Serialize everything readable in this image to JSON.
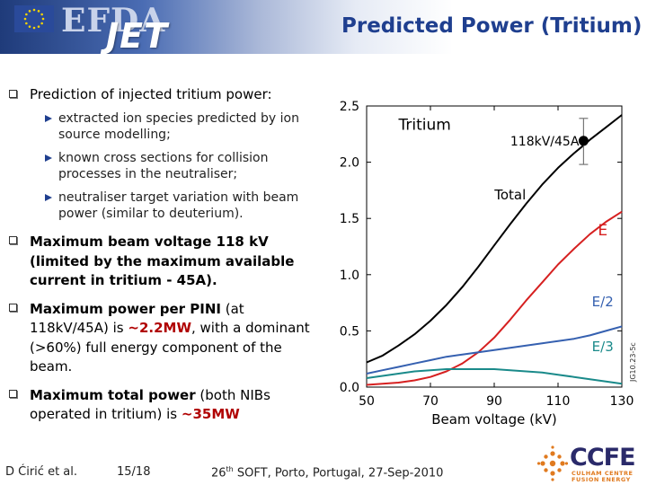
{
  "header": {
    "efda_logo": "EFDA",
    "jet_logo": "JET",
    "title": "Predicted Power (Tritium)"
  },
  "bullets": {
    "b1": "Prediction of injected tritium power:",
    "subs": [
      "extracted ion species predicted by ion source modelling;",
      "known cross sections for collision processes in the neutraliser;",
      "neutraliser target variation with beam power (similar to deuterium)."
    ],
    "b2": "Maximum beam voltage 118 kV (limited by the maximum available current in tritium - 45A).",
    "b3_bold": "Maximum power per PINI",
    "b3_mid": "(at 118kV/45A) is",
    "b3_red": "~2.2MW",
    "b3_end": ", with a dominant (>60%) full energy component of the beam.",
    "b4_bold": "Maximum total power",
    "b4_mid": "(both NIBs operated in tritium) is",
    "b4_red": "~35MW"
  },
  "chart_data": {
    "type": "line",
    "title": "Tritium",
    "xlabel": "Beam voltage (kV)",
    "ylabel": "",
    "xlim": [
      50,
      130
    ],
    "ylim": [
      0,
      2.5
    ],
    "xticks": [
      50,
      70,
      90,
      110,
      130
    ],
    "yticks": [
      "0.0",
      "0.5",
      "1.0",
      "1.5",
      "2.0",
      "2.5"
    ],
    "grid": false,
    "series": [
      {
        "name": "Total",
        "color": "#000000",
        "x": [
          50,
          55,
          60,
          65,
          70,
          75,
          80,
          85,
          90,
          95,
          100,
          105,
          110,
          115,
          118,
          120,
          125,
          130
        ],
        "y": [
          0.22,
          0.28,
          0.37,
          0.47,
          0.59,
          0.73,
          0.89,
          1.07,
          1.26,
          1.45,
          1.63,
          1.8,
          1.95,
          2.08,
          2.15,
          2.2,
          2.31,
          2.42
        ]
      },
      {
        "name": "E",
        "color": "#d62020",
        "x": [
          50,
          55,
          60,
          65,
          70,
          75,
          80,
          85,
          90,
          95,
          100,
          105,
          110,
          115,
          120,
          125,
          130
        ],
        "y": [
          0.02,
          0.03,
          0.04,
          0.06,
          0.09,
          0.14,
          0.21,
          0.31,
          0.44,
          0.6,
          0.77,
          0.93,
          1.09,
          1.23,
          1.36,
          1.47,
          1.56
        ]
      },
      {
        "name": "E/2",
        "color": "#3560b0",
        "x": [
          50,
          55,
          60,
          65,
          70,
          75,
          80,
          85,
          90,
          95,
          100,
          105,
          110,
          115,
          120,
          125,
          130
        ],
        "y": [
          0.12,
          0.15,
          0.18,
          0.21,
          0.24,
          0.27,
          0.29,
          0.31,
          0.33,
          0.35,
          0.37,
          0.39,
          0.41,
          0.43,
          0.46,
          0.5,
          0.54
        ]
      },
      {
        "name": "E/3",
        "color": "#1a8a8a",
        "x": [
          50,
          55,
          60,
          65,
          70,
          75,
          80,
          85,
          90,
          95,
          100,
          105,
          110,
          115,
          120,
          125,
          130
        ],
        "y": [
          0.08,
          0.1,
          0.12,
          0.14,
          0.15,
          0.16,
          0.16,
          0.16,
          0.16,
          0.15,
          0.14,
          0.13,
          0.11,
          0.09,
          0.07,
          0.05,
          0.03
        ]
      }
    ],
    "point": {
      "label": "118kV/45A",
      "x": 118,
      "y": 2.19,
      "err_low": 1.98,
      "err_high": 2.39
    },
    "side_code": "JG10.23-5c"
  },
  "footer": {
    "author": "D Ćirić et al.",
    "page": "15/18",
    "conf_num": "26",
    "conf_sup": "th",
    "conf_rest": " SOFT, Porto, Portugal, 27-Sep-2010",
    "logo": "CCFE",
    "logo_sub1": "CULHAM CENTRE",
    "logo_sub2": "FUSION ENERGY"
  }
}
